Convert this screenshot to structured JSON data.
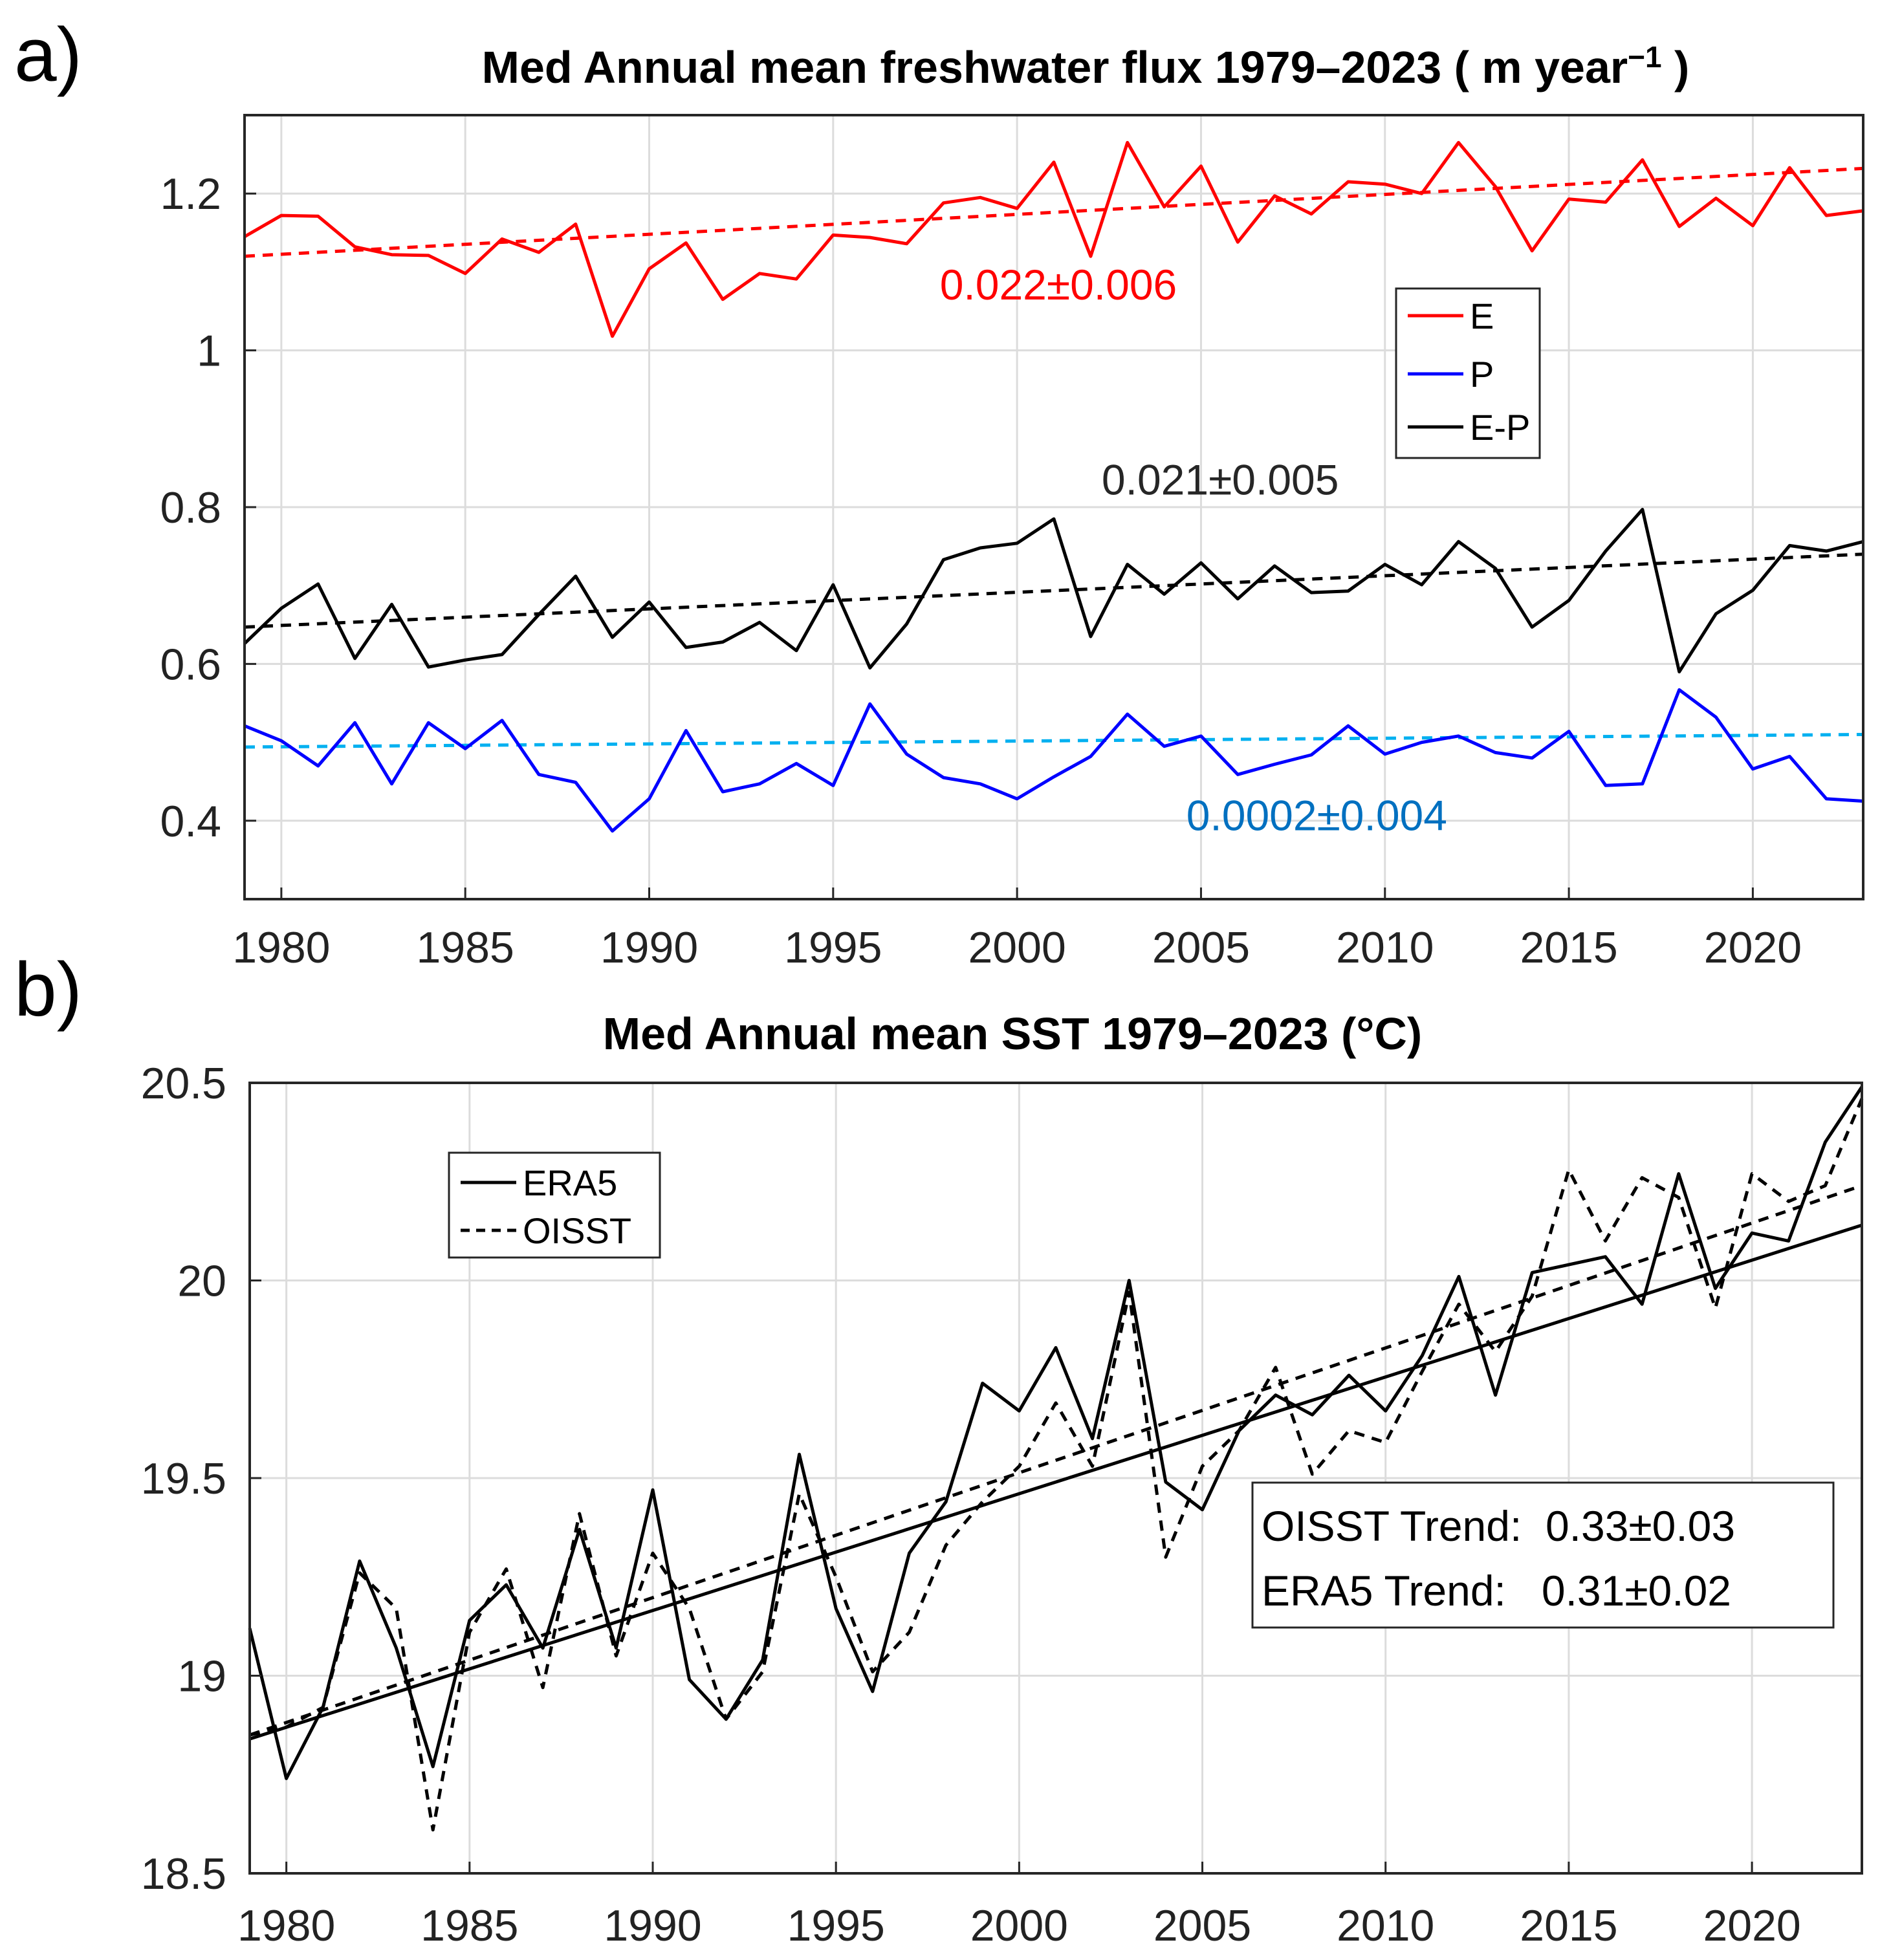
{
  "chart_data": [
    {
      "panel": "a)",
      "type": "line",
      "title": "Med Annual mean freshwater flux 1979–2023 ( m year",
      "title_sup": "−1",
      "title_end": " )",
      "xlim": [
        1979,
        2023
      ],
      "ylim": [
        0.3,
        1.3
      ],
      "xticks": [
        1980,
        1985,
        1990,
        1995,
        2000,
        2005,
        2010,
        2015,
        2020
      ],
      "yticks": [
        0.4,
        0.6,
        0.8,
        1,
        1.2
      ],
      "ytick_labels": [
        "0.4",
        "0.6",
        "0.8",
        "1",
        "1.2"
      ],
      "grid": true,
      "legend": {
        "placement": "inside-upper-right",
        "entries": [
          "E",
          "P",
          "E-P"
        ]
      },
      "x": [
        1979,
        1980,
        1981,
        1982,
        1983,
        1984,
        1985,
        1986,
        1987,
        1988,
        1989,
        1990,
        1991,
        1992,
        1993,
        1994,
        1995,
        1996,
        1997,
        1998,
        1999,
        2000,
        2001,
        2002,
        2003,
        2004,
        2005,
        2006,
        2007,
        2008,
        2009,
        2010,
        2011,
        2012,
        2013,
        2014,
        2015,
        2016,
        2017,
        2018,
        2019,
        2020,
        2021,
        2022,
        2023
      ],
      "series": [
        {
          "name": "E",
          "color": "#ff0000",
          "style": "solid",
          "values": [
            1.145,
            1.172,
            1.171,
            1.132,
            1.122,
            1.121,
            1.098,
            1.142,
            1.125,
            1.161,
            1.018,
            1.104,
            1.137,
            1.065,
            1.098,
            1.091,
            1.147,
            1.144,
            1.136,
            1.188,
            1.195,
            1.181,
            1.24,
            1.12,
            1.265,
            1.183,
            1.235,
            1.138,
            1.197,
            1.174,
            1.215,
            1.212,
            1.2,
            1.265,
            1.209,
            1.127,
            1.193,
            1.189,
            1.243,
            1.158,
            1.194,
            1.159,
            1.233,
            1.172,
            1.178
          ]
        },
        {
          "name": "P",
          "color": "#0000ff",
          "style": "solid",
          "values": [
            0.521,
            0.502,
            0.47,
            0.525,
            0.447,
            0.525,
            0.492,
            0.528,
            0.459,
            0.449,
            0.387,
            0.428,
            0.515,
            0.437,
            0.447,
            0.473,
            0.445,
            0.549,
            0.485,
            0.455,
            0.447,
            0.428,
            0.456,
            0.482,
            0.536,
            0.495,
            0.508,
            0.459,
            0.472,
            0.484,
            0.521,
            0.485,
            0.5,
            0.508,
            0.487,
            0.48,
            0.514,
            0.445,
            0.447,
            0.567,
            0.532,
            0.466,
            0.482,
            0.428,
            0.425
          ]
        },
        {
          "name": "E-P",
          "color": "#000000",
          "style": "solid",
          "values": [
            0.626,
            0.671,
            0.702,
            0.607,
            0.676,
            0.596,
            0.605,
            0.612,
            0.663,
            0.712,
            0.634,
            0.679,
            0.621,
            0.628,
            0.653,
            0.617,
            0.701,
            0.595,
            0.651,
            0.733,
            0.748,
            0.754,
            0.785,
            0.635,
            0.727,
            0.689,
            0.729,
            0.683,
            0.725,
            0.691,
            0.693,
            0.727,
            0.701,
            0.756,
            0.722,
            0.647,
            0.681,
            0.744,
            0.797,
            0.59,
            0.664,
            0.694,
            0.751,
            0.744,
            0.756
          ]
        }
      ],
      "trend_lines": [
        {
          "series": "E",
          "color": "#ff0000",
          "style": "dashed",
          "start": [
            1979,
            1.12
          ],
          "end": [
            2023,
            1.232
          ]
        },
        {
          "series": "E-P",
          "color": "#000000",
          "style": "dashed",
          "start": [
            1979,
            0.647
          ],
          "end": [
            2023,
            0.74
          ]
        },
        {
          "series": "P",
          "color": "#00b0f0",
          "style": "dashed",
          "start": [
            1979,
            0.494
          ],
          "end": [
            2023,
            0.51
          ]
        }
      ],
      "annotations": [
        {
          "text": "0.022±0.006",
          "color": "#ff0000",
          "at": [
            1997.9,
            1.065
          ]
        },
        {
          "text": "0.021±0.005",
          "color": "#262626",
          "at": [
            2002.3,
            0.816
          ]
        },
        {
          "text": "0.0002±0.004",
          "color": "#0070c0",
          "at": [
            2004.6,
            0.388
          ]
        }
      ]
    },
    {
      "panel": "b)",
      "type": "line",
      "title": "Med Annual mean SST 1979–2023 (°C)",
      "xlim": [
        1979,
        2023
      ],
      "ylim": [
        18.5,
        20.5
      ],
      "xticks": [
        1980,
        1985,
        1990,
        1995,
        2000,
        2005,
        2010,
        2015,
        2020
      ],
      "yticks": [
        18.5,
        19,
        19.5,
        20,
        20.5
      ],
      "ytick_labels": [
        "18.5",
        "19",
        "19.5",
        "20",
        "20.5"
      ],
      "grid": true,
      "legend": {
        "placement": "inside-upper-left",
        "entries": [
          "ERA5",
          "OISST"
        ]
      },
      "x": [
        1979,
        1980,
        1981,
        1982,
        1983,
        1984,
        1985,
        1986,
        1987,
        1988,
        1989,
        1990,
        1991,
        1992,
        1993,
        1994,
        1995,
        1996,
        1997,
        1998,
        1999,
        2000,
        2001,
        2002,
        2003,
        2004,
        2005,
        2006,
        2007,
        2008,
        2009,
        2010,
        2011,
        2012,
        2013,
        2014,
        2015,
        2016,
        2017,
        2018,
        2019,
        2020,
        2021,
        2022,
        2023
      ],
      "series": [
        {
          "name": "ERA5",
          "color": "#000000",
          "style": "solid",
          "values": [
            19.12,
            18.74,
            18.92,
            19.29,
            19.07,
            18.77,
            19.14,
            19.23,
            19.07,
            19.37,
            19.07,
            19.47,
            18.99,
            18.89,
            19.04,
            19.56,
            19.17,
            18.96,
            19.31,
            19.44,
            19.74,
            19.67,
            19.83,
            19.6,
            20.0,
            19.49,
            19.42,
            19.62,
            19.71,
            19.66,
            19.76,
            19.67,
            19.81,
            20.01,
            19.71,
            20.02,
            20.04,
            20.06,
            19.94,
            20.27,
            19.98,
            20.12,
            20.1,
            20.35,
            20.49
          ]
        },
        {
          "name": "OISST",
          "color": "#000000",
          "style": "dashed",
          "values": [
            18.85,
            18.87,
            18.92,
            19.26,
            19.17,
            18.61,
            19.11,
            19.27,
            18.97,
            19.41,
            19.05,
            19.31,
            19.17,
            18.89,
            19.01,
            19.46,
            19.25,
            19.01,
            19.11,
            19.33,
            19.44,
            19.53,
            19.69,
            19.53,
            19.97,
            19.3,
            19.53,
            19.62,
            19.78,
            19.51,
            19.62,
            19.59,
            19.77,
            19.94,
            19.82,
            19.96,
            20.28,
            20.1,
            20.26,
            20.21,
            19.93,
            20.27,
            20.2,
            20.24,
            20.46
          ]
        }
      ],
      "trend_lines": [
        {
          "series": "ERA5",
          "color": "#000000",
          "style": "solid",
          "start": [
            1979,
            18.84
          ],
          "end": [
            2023,
            20.14
          ]
        },
        {
          "series": "OISST",
          "color": "#000000",
          "style": "dashed",
          "start": [
            1979,
            18.85
          ],
          "end": [
            2023,
            20.24
          ]
        }
      ],
      "trend_box": [
        "OISST Trend:  0.33±0.03",
        "ERA5 Trend:   0.31±0.02"
      ]
    }
  ]
}
